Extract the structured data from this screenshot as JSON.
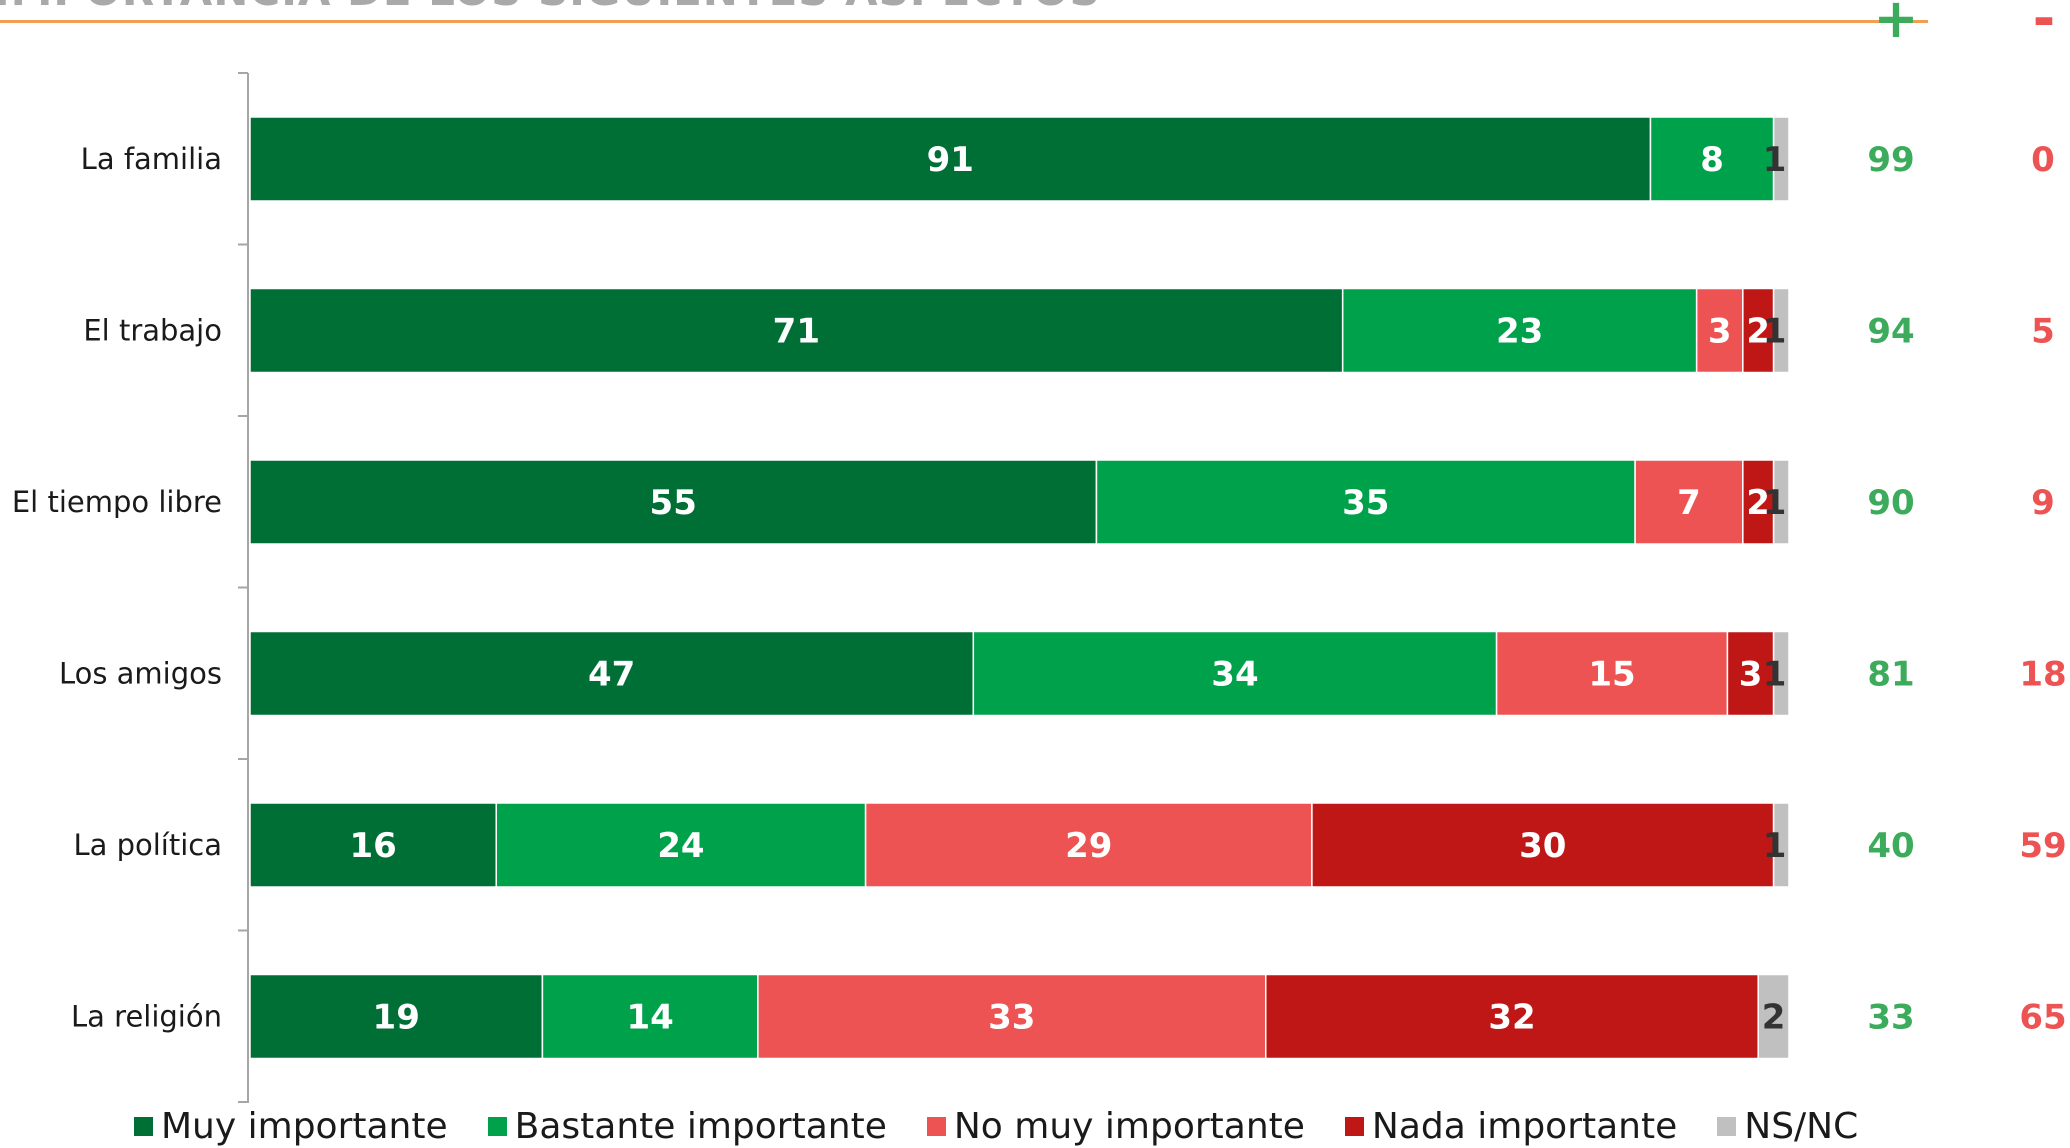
{
  "header": {
    "title": "IMPORTANCIA DE LOS SIGUIENTES ASPECTOS",
    "plus_symbol": "+",
    "minus_symbol": "-"
  },
  "colors": {
    "muy_importante": "#006f35",
    "bastante_importante": "#00a14b",
    "no_muy_importante": "#ed5353",
    "nada_importante": "#bf1616",
    "ns_nc": "#c0c0c0",
    "positive_total": "#3cab5c",
    "negative_total": "#ed5353",
    "title_rule": "#f0a050"
  },
  "chart_data": {
    "type": "bar",
    "orientation": "horizontal",
    "stacked": true,
    "categories": [
      "La familia",
      "El trabajo",
      "El tiempo libre",
      "Los amigos",
      "La política",
      "La religión"
    ],
    "series": [
      {
        "name": "Muy importante",
        "color": "#006f35",
        "values": [
          91,
          71,
          55,
          47,
          16,
          19
        ]
      },
      {
        "name": "Bastante importante",
        "color": "#00a14b",
        "values": [
          8,
          23,
          35,
          34,
          24,
          14
        ]
      },
      {
        "name": "No muy importante",
        "color": "#ed5353",
        "values": [
          0,
          3,
          7,
          15,
          29,
          33
        ]
      },
      {
        "name": "Nada importante",
        "color": "#bf1616",
        "values": [
          0,
          2,
          2,
          3,
          30,
          32
        ]
      },
      {
        "name": "NS/NC",
        "color": "#c0c0c0",
        "values": [
          1,
          1,
          1,
          1,
          1,
          2
        ]
      }
    ],
    "positive_totals": [
      99,
      94,
      90,
      81,
      40,
      33
    ],
    "negative_totals": [
      0,
      5,
      9,
      18,
      59,
      65
    ],
    "xlim": [
      0,
      100
    ],
    "legend_position": "bottom",
    "grid": false
  }
}
